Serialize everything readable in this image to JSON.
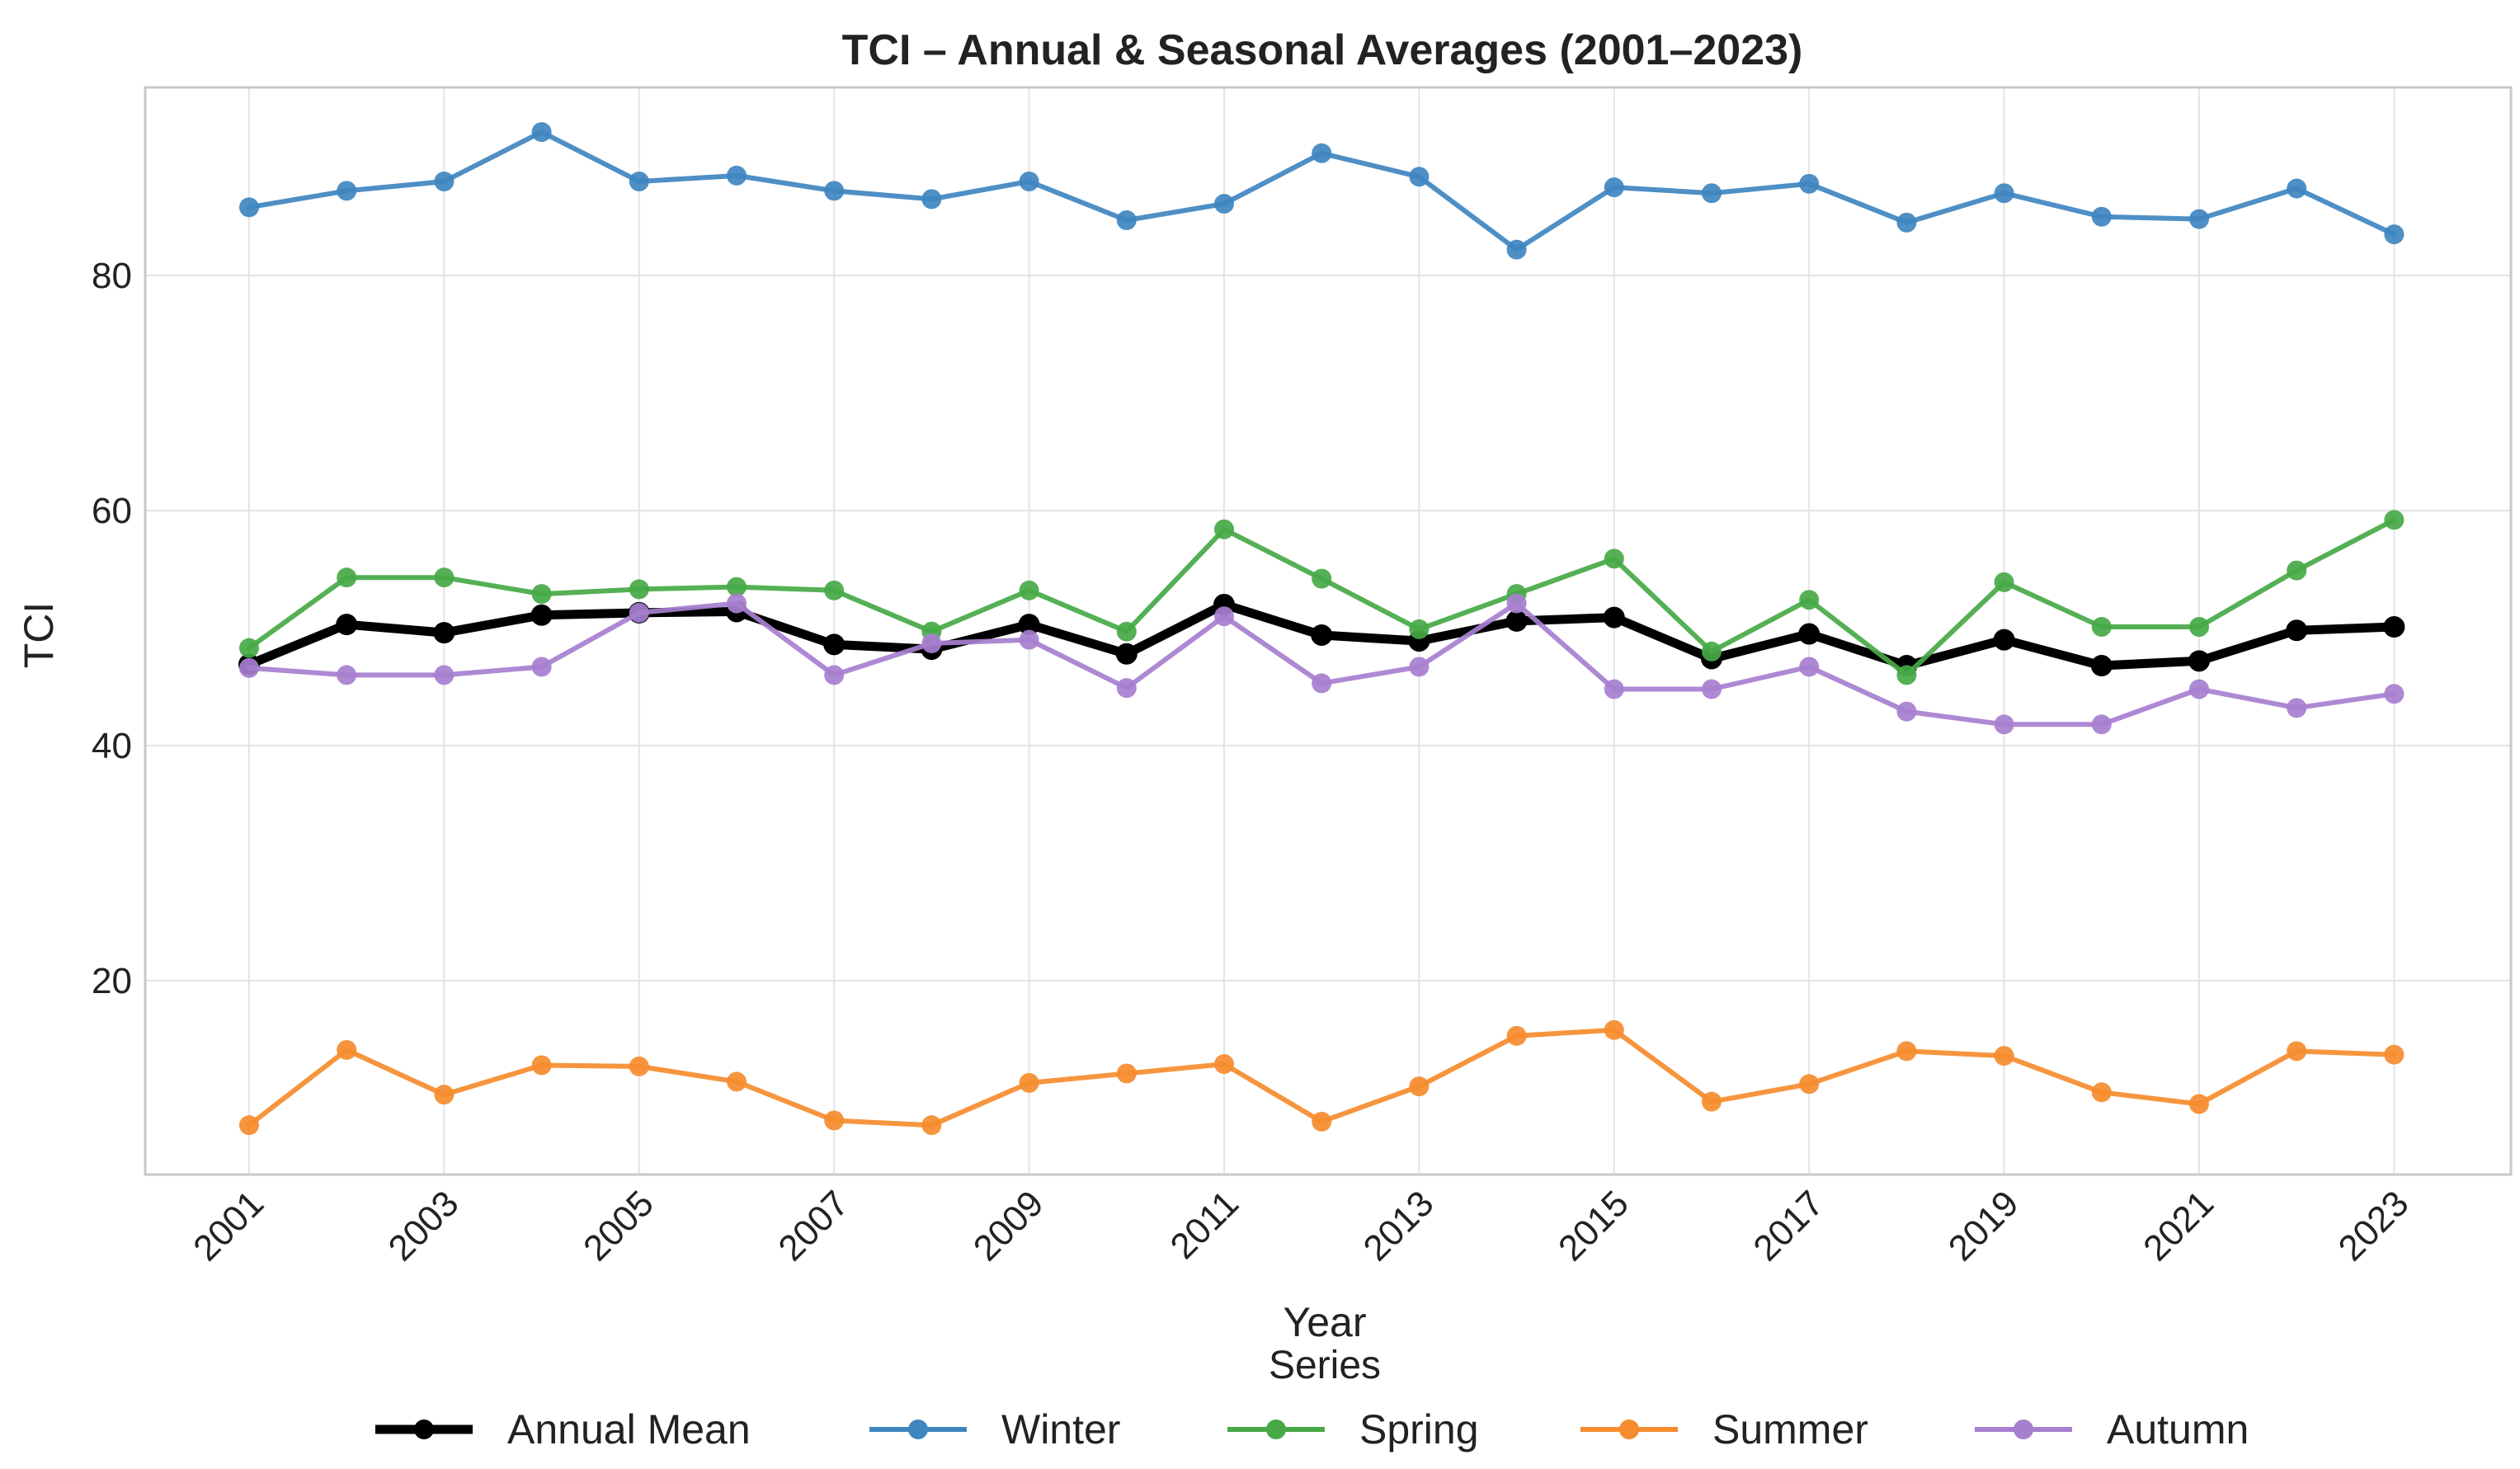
{
  "chart_data": {
    "type": "line",
    "title": "TCI – Annual & Seasonal Averages (2001–2023)",
    "xlabel": "Year",
    "ylabel": "TCI",
    "x": [
      2001,
      2002,
      2003,
      2004,
      2005,
      2006,
      2007,
      2008,
      2009,
      2010,
      2011,
      2012,
      2013,
      2014,
      2015,
      2016,
      2017,
      2018,
      2019,
      2020,
      2021,
      2022,
      2023
    ],
    "x_tick_labels": [
      "2001",
      "2003",
      "2005",
      "2007",
      "2009",
      "2011",
      "2013",
      "2015",
      "2017",
      "2019",
      "2021",
      "2023"
    ],
    "y_tick_labels": [
      "20",
      "40",
      "60",
      "80"
    ],
    "y_ticks": [
      20,
      40,
      60,
      80
    ],
    "ylim": [
      3.5,
      96
    ],
    "grid": true,
    "legend_title": "Series",
    "legend_position": "bottom-center",
    "series": [
      {
        "name": "Annual Mean",
        "color": "#000000",
        "values": [
          46.9,
          50.3,
          49.6,
          51.1,
          51.3,
          51.4,
          48.6,
          48.2,
          50.3,
          47.8,
          52.0,
          49.4,
          48.9,
          50.6,
          50.9,
          47.4,
          49.5,
          46.8,
          49.0,
          46.8,
          47.2,
          49.8,
          50.1
        ]
      },
      {
        "name": "Winter",
        "color": "#3f86c0",
        "values": [
          85.8,
          87.2,
          88.0,
          92.2,
          88.0,
          88.5,
          87.2,
          86.5,
          88.0,
          84.7,
          86.1,
          90.4,
          88.4,
          82.2,
          87.5,
          87.0,
          87.8,
          84.5,
          87.0,
          85.0,
          84.8,
          87.4,
          83.5
        ]
      },
      {
        "name": "Spring",
        "color": "#46a946",
        "values": [
          48.3,
          54.3,
          54.3,
          52.9,
          53.3,
          53.5,
          53.2,
          49.7,
          53.2,
          49.7,
          58.4,
          54.2,
          49.9,
          52.9,
          55.9,
          48.0,
          52.4,
          46.0,
          53.9,
          50.1,
          50.1,
          54.9,
          59.2
        ]
      },
      {
        "name": "Summer",
        "color": "#f58c2e",
        "values": [
          7.7,
          14.1,
          10.3,
          12.8,
          12.7,
          11.4,
          8.1,
          7.7,
          11.3,
          12.1,
          12.9,
          8.0,
          11.0,
          15.3,
          15.8,
          9.7,
          11.2,
          14.0,
          13.6,
          10.5,
          9.5,
          14.0,
          13.7
        ]
      },
      {
        "name": "Autumn",
        "color": "#a77fcf",
        "values": [
          46.6,
          46.0,
          46.0,
          46.7,
          51.3,
          52.1,
          46.0,
          48.7,
          49.0,
          44.9,
          51.0,
          45.3,
          46.7,
          52.1,
          44.8,
          44.8,
          46.7,
          42.9,
          41.8,
          41.8,
          44.8,
          43.2,
          44.4
        ]
      }
    ]
  }
}
